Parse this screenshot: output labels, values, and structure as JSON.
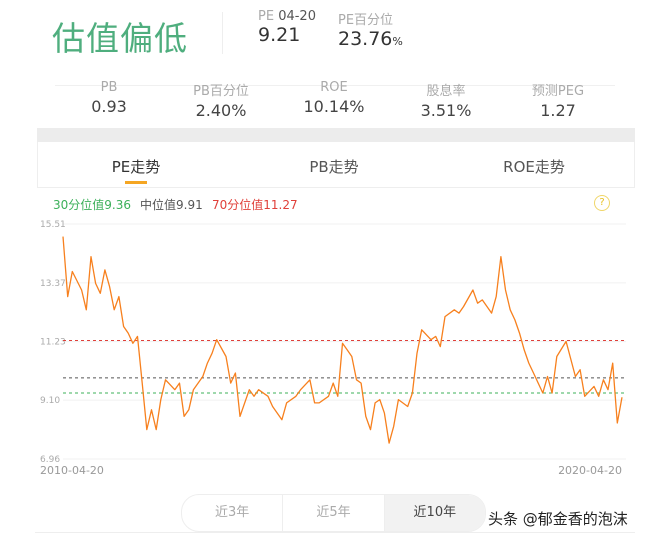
{
  "header": {
    "status": "估值偏低",
    "pe_label": "PE",
    "pe_date": "04-20",
    "pe_value": "9.21",
    "pe_pct_label": "PE百分位",
    "pe_pct_value": "23.76",
    "pe_pct_unit": "%"
  },
  "metrics": [
    {
      "label": "PB",
      "value": "0.93"
    },
    {
      "label": "PB百分位",
      "value": "2.40%"
    },
    {
      "label": "ROE",
      "value": "10.14%"
    },
    {
      "label": "股息率",
      "value": "3.51%"
    },
    {
      "label": "预测PEG",
      "value": "1.27"
    }
  ],
  "tabs": [
    {
      "label": "PE走势",
      "active": true
    },
    {
      "label": "PB走势"
    },
    {
      "label": "ROE走势"
    }
  ],
  "reference": {
    "p30": "30分位值9.36",
    "median": "中位值9.91",
    "p70": "70分位值11.27",
    "help": "?"
  },
  "colors": {
    "status": "#4fae7e",
    "line": "#f7801e",
    "p30": "#3cb05a",
    "median": "#555555",
    "p70": "#e0403a",
    "tab_underline": "#f5a623"
  },
  "chart_data": {
    "type": "line",
    "yticks": [
      "15.51",
      "13.37",
      "11.23",
      "9.10",
      "6.96"
    ],
    "ylim": [
      6.96,
      15.51
    ],
    "xlabels": [
      "2010-04-20",
      "2020-04-20"
    ],
    "reference_lines": [
      {
        "value": 11.27,
        "color": "#e0403a"
      },
      {
        "value": 9.91,
        "color": "#555555"
      },
      {
        "value": 9.36,
        "color": "#3cb05a"
      }
    ],
    "x": [
      "2010-04",
      "2010-05",
      "2010-06",
      "2010-08",
      "2010-09",
      "2010-10",
      "2010-11",
      "2010-12",
      "2011-01",
      "2011-02",
      "2011-03",
      "2011-04",
      "2011-05",
      "2011-06",
      "2011-07",
      "2011-08",
      "2011-09",
      "2011-10",
      "2011-11",
      "2011-12",
      "2012-01",
      "2012-02",
      "2012-04",
      "2012-05",
      "2012-06",
      "2012-07",
      "2012-08",
      "2012-10",
      "2012-11",
      "2012-12",
      "2013-01",
      "2013-03",
      "2013-04",
      "2013-05",
      "2013-06",
      "2013-08",
      "2013-09",
      "2013-10",
      "2013-12",
      "2014-01",
      "2014-03",
      "2014-04",
      "2014-06",
      "2014-07",
      "2014-09",
      "2014-10",
      "2014-11",
      "2015-01",
      "2015-02",
      "2015-03",
      "2015-04",
      "2015-05",
      "2015-06",
      "2015-07",
      "2015-08",
      "2015-09",
      "2015-10",
      "2015-11",
      "2015-12",
      "2016-01",
      "2016-02",
      "2016-03",
      "2016-04",
      "2016-06",
      "2016-07",
      "2016-08",
      "2016-09",
      "2016-11",
      "2016-12",
      "2017-01",
      "2017-02",
      "2017-04",
      "2017-05",
      "2017-06",
      "2017-08",
      "2017-09",
      "2017-10",
      "2017-12",
      "2018-01",
      "2018-02",
      "2018-03",
      "2018-04",
      "2018-05",
      "2018-06",
      "2018-07",
      "2018-08",
      "2018-09",
      "2018-11",
      "2018-12",
      "2019-01",
      "2019-02",
      "2019-04",
      "2019-06",
      "2019-07",
      "2019-08",
      "2019-10",
      "2019-11",
      "2019-12",
      "2020-01",
      "2020-02",
      "2020-03",
      "2020-04"
    ],
    "y": [
      15.05,
      12.87,
      13.78,
      13.11,
      12.39,
      14.32,
      13.35,
      12.99,
      13.84,
      13.23,
      12.39,
      12.87,
      11.78,
      11.54,
      11.17,
      11.42,
      9.72,
      8.03,
      8.75,
      8.03,
      9.12,
      9.84,
      9.48,
      9.72,
      8.51,
      8.75,
      9.48,
      9.96,
      10.45,
      10.81,
      11.3,
      10.69,
      9.72,
      10.09,
      8.51,
      9.48,
      9.24,
      9.48,
      9.24,
      8.87,
      8.39,
      9.0,
      9.24,
      9.48,
      9.84,
      9.0,
      9.0,
      9.24,
      9.72,
      9.24,
      11.17,
      10.93,
      10.69,
      9.84,
      9.72,
      8.51,
      8.03,
      9.0,
      9.12,
      8.63,
      7.54,
      8.15,
      9.12,
      8.87,
      9.36,
      10.81,
      11.66,
      11.3,
      11.42,
      11.05,
      12.14,
      12.39,
      12.27,
      12.51,
      13.11,
      12.63,
      12.75,
      12.27,
      12.87,
      14.32,
      13.11,
      12.39,
      12.02,
      11.54,
      10.93,
      10.45,
      10.09,
      9.36,
      9.96,
      9.36,
      10.69,
      11.24,
      9.96,
      10.21,
      9.24,
      9.6,
      9.24,
      9.84,
      9.48,
      10.45,
      8.27,
      9.21
    ]
  },
  "range": [
    {
      "label": "近3年"
    },
    {
      "label": "近5年"
    },
    {
      "label": "近10年",
      "active": true
    }
  ],
  "watermark": "头条 @郁金香的泡沫"
}
